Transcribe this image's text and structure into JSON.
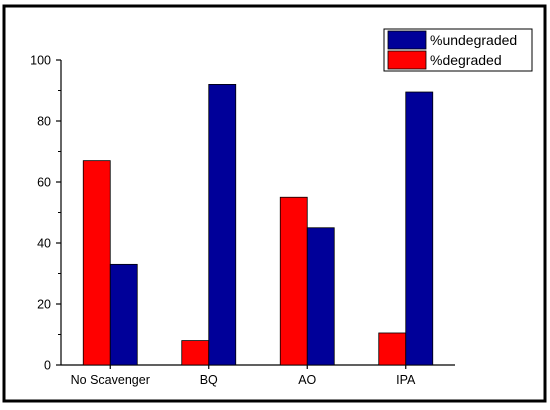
{
  "chart_data": {
    "type": "bar",
    "categories": [
      "No Scavenger",
      "BQ",
      "AO",
      "IPA"
    ],
    "series": [
      {
        "name": "%degraded",
        "values": [
          67,
          8,
          55,
          10.5
        ],
        "color": "#ff0000"
      },
      {
        "name": "%undegraded",
        "values": [
          33,
          92,
          45,
          89.5
        ],
        "color": "#000099"
      }
    ],
    "legend_order": [
      "%undegraded",
      "%degraded"
    ],
    "ylim": [
      0,
      100
    ],
    "yticks": [
      "0",
      "20",
      "40",
      "60",
      "80",
      "100"
    ],
    "grid": false,
    "legend_position": "top-right",
    "title": "",
    "xlabel": "",
    "ylabel": ""
  }
}
